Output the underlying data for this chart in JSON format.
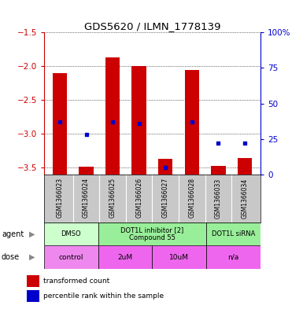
{
  "title": "GDS5620 / ILMN_1778139",
  "samples": [
    "GSM1366023",
    "GSM1366024",
    "GSM1366025",
    "GSM1366026",
    "GSM1366027",
    "GSM1366028",
    "GSM1366033",
    "GSM1366034"
  ],
  "bar_values": [
    -2.1,
    -3.48,
    -1.87,
    -2.0,
    -3.37,
    -2.05,
    -3.47,
    -3.35
  ],
  "percentile_values": [
    37,
    28,
    37,
    36,
    5,
    37,
    22,
    22
  ],
  "ylim": [
    -3.6,
    -1.5
  ],
  "yticks": [
    -1.5,
    -2.0,
    -2.5,
    -3.0,
    -3.5
  ],
  "y2lim": [
    0,
    100
  ],
  "y2ticks": [
    0,
    25,
    50,
    75,
    100
  ],
  "y2labels": [
    "0",
    "25",
    "50",
    "75",
    "100%"
  ],
  "bar_color": "#cc0000",
  "dot_color": "#0000cc",
  "tick_color_left": "#cc0000",
  "tick_color_right": "#0000cc",
  "agent_defs": [
    [
      0,
      2,
      "DMSO",
      "#ccffcc"
    ],
    [
      2,
      6,
      "DOT1L inhibitor [2]\nCompound 55",
      "#99ee99"
    ],
    [
      6,
      8,
      "DOT1L siRNA",
      "#99ee99"
    ]
  ],
  "dose_defs": [
    [
      0,
      2,
      "control",
      "#ee88ee"
    ],
    [
      2,
      4,
      "2uM",
      "#ee66ee"
    ],
    [
      4,
      6,
      "10uM",
      "#ee66ee"
    ],
    [
      6,
      8,
      "n/a",
      "#ee66ee"
    ]
  ],
  "plot_bg": "#ffffff"
}
